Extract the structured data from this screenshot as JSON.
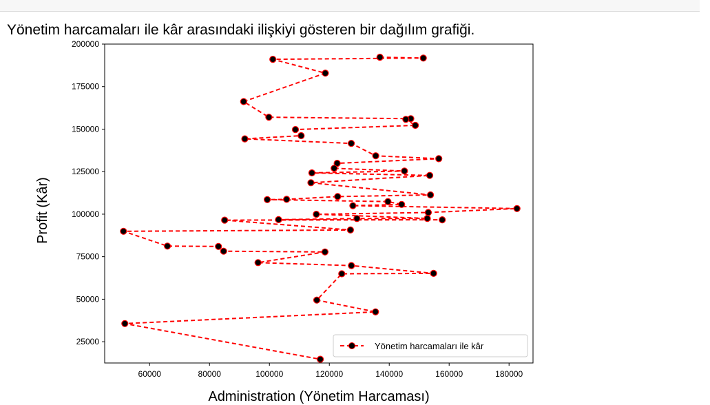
{
  "caption": "Yönetim harcamaları ile kâr arasındaki ilişkiyi gösteren bir dağılım grafiği.",
  "chart_data": {
    "type": "line",
    "title": "",
    "xlabel": "Administration (Yönetim Harcaması)",
    "ylabel": "Profit (Kâr)",
    "xlim": [
      45000,
      188000
    ],
    "ylim": [
      12500,
      200000
    ],
    "xticks": [
      60000,
      80000,
      100000,
      120000,
      140000,
      160000,
      180000
    ],
    "yticks": [
      25000,
      50000,
      75000,
      100000,
      125000,
      150000,
      175000,
      200000
    ],
    "grid": false,
    "legend_position": "lower right",
    "series": [
      {
        "name": "Yönetim harcamaları ile kâr",
        "color": "#ff0000",
        "marker_color": "#000000",
        "line_style": "dashed",
        "x": [
          136898,
          151378,
          101146,
          118672,
          91392,
          99815,
          147199,
          145530,
          148719,
          108680,
          110595,
          91791,
          127320,
          135495,
          156547,
          122617,
          121598,
          145078,
          114176,
          153515,
          113867,
          153774,
          122783,
          105751,
          99281,
          139554,
          144136,
          127865,
          182646,
          153033,
          115642,
          152702,
          129220,
          103057,
          157694,
          85047,
          127056,
          51283,
          65948,
          82982,
          84710,
          118546,
          96189,
          127383,
          154807,
          124153,
          115817,
          135427,
          51743,
          116984
        ],
        "y": [
          192262,
          191792,
          191050,
          182902,
          166188,
          156991,
          156123,
          155753,
          152212,
          149760,
          146122,
          144259,
          141586,
          134307,
          132603,
          129917,
          126993,
          125371,
          124267,
          122777,
          118474,
          111314,
          110352,
          108734,
          108552,
          107404,
          105734,
          105008,
          103282,
          101004,
          99938,
          97484,
          97427,
          96779,
          96712,
          96479,
          90709,
          89949,
          81230,
          81006,
          78240,
          77798,
          71498,
          69759,
          65201,
          64927,
          49491,
          42560,
          35674,
          14681
        ]
      }
    ]
  }
}
